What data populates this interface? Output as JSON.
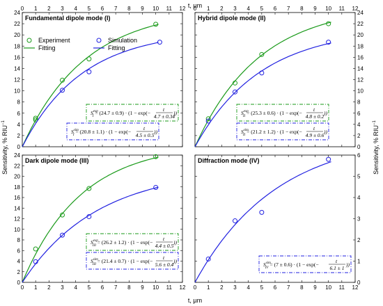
{
  "figure": {
    "top_xlabel": "t, µm",
    "bottom_xlabel": "t, µm",
    "left_ylabel": "Sensitivity, % RIU",
    "left_ylabel_sup": "−1",
    "right_ylabel": "Sensitivity, % RIU",
    "right_ylabel_sup": "−1"
  },
  "legend": {
    "experiment": "Experiment",
    "simulation": "Simulation",
    "fitting_exp": "Fitting",
    "fitting_sim": "Fitting"
  },
  "colors": {
    "experiment": "#1a9a1a",
    "simulation": "#2020e0"
  },
  "chart_data": [
    {
      "type": "scatter",
      "title": "Fundamental dipole mode (I)",
      "xlim": [
        0,
        12
      ],
      "ylim": [
        0,
        24
      ],
      "xticks": [
        0,
        1,
        2,
        3,
        4,
        5,
        6,
        7,
        8,
        9,
        10,
        11,
        12
      ],
      "yticks": [
        0,
        2,
        4,
        6,
        8,
        10,
        12,
        14,
        16,
        18,
        20,
        22,
        24
      ],
      "series": [
        {
          "name": "Experiment",
          "x": [
            1,
            1,
            3,
            5,
            10
          ],
          "y": [
            4.8,
            5.1,
            11.9,
            15.7,
            21.9
          ],
          "fit": {
            "A": 24.7,
            "t0": 4.7
          }
        },
        {
          "name": "Simulation",
          "x": [
            3,
            5,
            10.3
          ],
          "y": [
            10.1,
            13.4,
            18.7
          ],
          "fit": {
            "A": 20.8,
            "t0": 4.5
          }
        }
      ],
      "equations": [
        {
          "lhs": "S",
          "sub": "I",
          "sup": "exp",
          "text": "= (24.7 ± 0.9) · (1 − exp(−",
          "num": "t",
          "den": "4.7 ± 0.34",
          "tail": "))"
        },
        {
          "lhs": "S",
          "sub": "I",
          "sup": "sim",
          "text": "= (20.8 ± 1.1) · (1 − exp(−",
          "num": "t",
          "den": "4.5 ± 0.5",
          "tail": "))"
        }
      ]
    },
    {
      "type": "scatter",
      "title": "Hybrid dipole mode (II)",
      "xlim": [
        0,
        12
      ],
      "ylim": [
        0,
        24
      ],
      "xticks": [
        0,
        1,
        2,
        3,
        4,
        5,
        6,
        7,
        8,
        9,
        10,
        11,
        12
      ],
      "yticks": [
        0,
        2,
        4,
        6,
        8,
        10,
        12,
        14,
        16,
        18,
        20,
        22,
        24
      ],
      "series": [
        {
          "name": "Experiment",
          "x": [
            1,
            3,
            5,
            10
          ],
          "y": [
            5.0,
            11.4,
            16.5,
            22.0
          ],
          "fit": {
            "A": 25.3,
            "t0": 4.8
          }
        },
        {
          "name": "Simulation",
          "x": [
            1,
            3,
            5,
            10
          ],
          "y": [
            4.6,
            9.8,
            13.2,
            18.7
          ],
          "fit": {
            "A": 21.2,
            "t0": 4.9
          }
        }
      ],
      "equations": [
        {
          "lhs": "S",
          "sub": "II",
          "sup": "exp",
          "text": "= (25.3 ± 0.6) · (1 − exp(−",
          "num": "t",
          "den": "4.8 ± 0.2",
          "tail": "))"
        },
        {
          "lhs": "S",
          "sub": "II",
          "sup": "sim",
          "text": "= (21.2 ± 1.2) · (1 − exp(−",
          "num": "t",
          "den": "4.9 ± 0.6",
          "tail": "))"
        }
      ]
    },
    {
      "type": "scatter",
      "title": "Dark dipole mode (III)",
      "xlim": [
        0,
        12
      ],
      "ylim": [
        0,
        24
      ],
      "xticks": [
        0,
        1,
        2,
        3,
        4,
        5,
        6,
        7,
        8,
        9,
        10,
        11,
        12
      ],
      "yticks": [
        0,
        2,
        4,
        6,
        8,
        10,
        12,
        14,
        16,
        18,
        20,
        22,
        24
      ],
      "series": [
        {
          "name": "Experiment",
          "x": [
            1,
            3,
            5,
            10
          ],
          "y": [
            6.3,
            12.7,
            17.7,
            23.7
          ],
          "fit": {
            "A": 26.2,
            "t0": 4.4
          }
        },
        {
          "name": "Simulation",
          "x": [
            1,
            3,
            5,
            10
          ],
          "y": [
            3.9,
            8.9,
            12.4,
            17.9
          ],
          "fit": {
            "A": 21.4,
            "t0": 5.6
          }
        }
      ],
      "equations": [
        {
          "lhs": "S",
          "sub": "III",
          "sup": "exp",
          "text": "= (26.2 ± 1.2) · (1 − exp(−",
          "num": "t",
          "den": "4.4 ± 0.5",
          "tail": "))"
        },
        {
          "lhs": "S",
          "sub": "III",
          "sup": "sim",
          "text": "= (21.4 ± 0.7) · (1 − exp(−",
          "num": "t",
          "den": "5.6 ± 0.4",
          "tail": "))"
        }
      ]
    },
    {
      "type": "scatter",
      "title": "Diffraction mode (IV)",
      "xlim": [
        0,
        12
      ],
      "ylim": [
        0,
        6
      ],
      "xticks": [
        0,
        1,
        2,
        3,
        4,
        5,
        6,
        7,
        8,
        9,
        10,
        11,
        12
      ],
      "yticks": [
        0,
        1,
        2,
        3,
        4,
        5,
        6
      ],
      "series": [
        {
          "name": "Simulation",
          "x": [
            1,
            3,
            5,
            10
          ],
          "y": [
            1.1,
            2.9,
            3.3,
            5.8
          ],
          "fit": {
            "A": 7,
            "t0": 6.1
          }
        }
      ],
      "equations": [
        {
          "lhs": "S",
          "sub": "IV",
          "sup": "sim",
          "text": "= (7 ± 0.6) · (1 − exp(−",
          "num": "t",
          "den": "6.1 ± 1",
          "tail": "))"
        }
      ]
    }
  ]
}
